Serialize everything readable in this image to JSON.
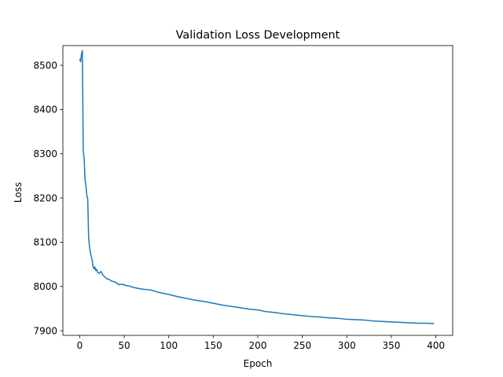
{
  "chart_data": {
    "type": "line",
    "title": "Validation Loss Development",
    "xlabel": "Epoch",
    "ylabel": "Loss",
    "xlim": [
      -18.9,
      418.9
    ],
    "ylim": [
      7889.5,
      8544.5
    ],
    "xticks": [
      0,
      50,
      100,
      150,
      200,
      250,
      300,
      350,
      400
    ],
    "yticks": [
      7900,
      8000,
      8100,
      8200,
      8300,
      8400,
      8500
    ],
    "grid": false,
    "legend": "none",
    "series": [
      {
        "color": "#1f77b4",
        "x": [
          0,
          1,
          2,
          3,
          4,
          5,
          6,
          7,
          8,
          9,
          10,
          11,
          12,
          13,
          14,
          15,
          16,
          17,
          18,
          19,
          20,
          22,
          24,
          26,
          28,
          30,
          33,
          36,
          40,
          44,
          48,
          52,
          56,
          60,
          65,
          70,
          75,
          80,
          85,
          90,
          95,
          100,
          110,
          120,
          130,
          140,
          150,
          160,
          170,
          180,
          190,
          200,
          210,
          220,
          230,
          240,
          250,
          260,
          270,
          280,
          290,
          300,
          310,
          320,
          330,
          340,
          350,
          360,
          370,
          380,
          390,
          398
        ],
        "y": [
          8515,
          8508,
          8525,
          8533,
          8305,
          8290,
          8240,
          8228,
          8205,
          8198,
          8112,
          8090,
          8077,
          8068,
          8060,
          8045,
          8040,
          8044,
          8036,
          8039,
          8032,
          8030,
          8034,
          8026,
          8022,
          8018,
          8016,
          8012,
          8010,
          8004,
          8005,
          8002,
          8001,
          7998,
          7996,
          7994,
          7993,
          7992,
          7989,
          7986,
          7984,
          7982,
          7977,
          7973,
          7969,
          7966,
          7962,
          7958,
          7955,
          7952,
          7949,
          7947,
          7943,
          7941,
          7938,
          7936,
          7934,
          7932,
          7931,
          7929,
          7928,
          7926,
          7925,
          7924,
          7922,
          7921,
          7920,
          7919,
          7918,
          7917,
          7917,
          7916
        ]
      }
    ]
  }
}
